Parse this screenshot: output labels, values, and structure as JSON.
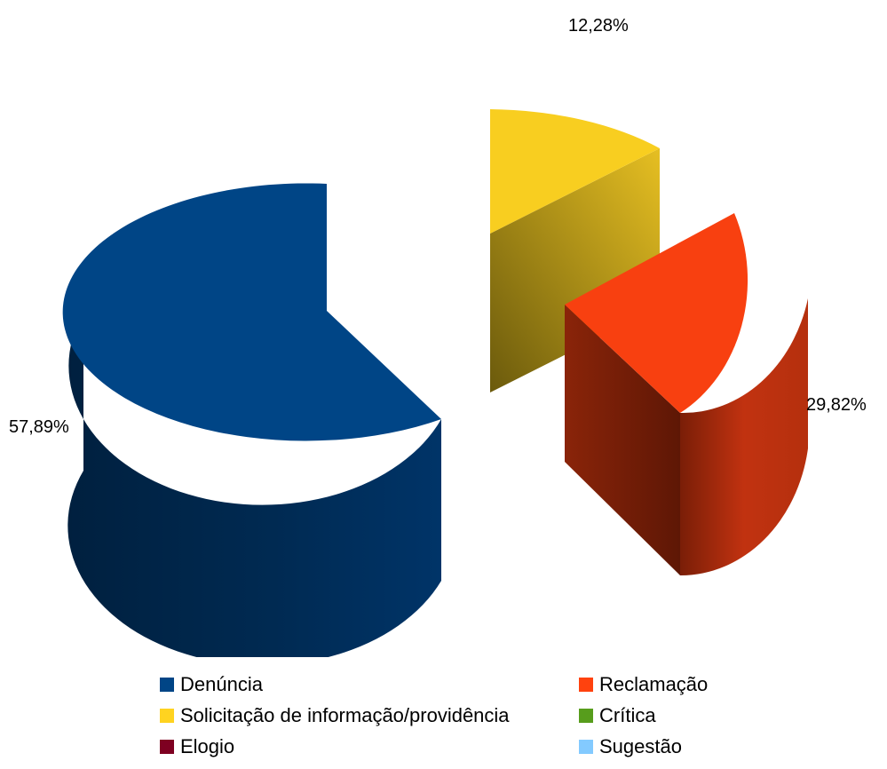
{
  "chart_data": {
    "type": "pie",
    "style": "3d-exploded",
    "slices": [
      {
        "name": "Denúncia",
        "value": 57.89,
        "label": "57,89%",
        "color": "#004586"
      },
      {
        "name": "Reclamação",
        "value": 29.82,
        "label": "29,82%",
        "color": "#ff420e"
      },
      {
        "name": "Solicitação de informação/providência",
        "value": 12.28,
        "label": "12,28%",
        "color": "#ffd320"
      },
      {
        "name": "Crítica",
        "value": 0,
        "label": "",
        "color": "#579d1c"
      },
      {
        "name": "Elogio",
        "value": 0,
        "label": "",
        "color": "#7e0021"
      },
      {
        "name": "Sugestão",
        "value": 0,
        "label": "",
        "color": "#83caff"
      }
    ],
    "legend": {
      "position": "bottom",
      "items": [
        {
          "label": "Denúncia",
          "color": "#004586"
        },
        {
          "label": "Reclamação",
          "color": "#ff420e"
        },
        {
          "label": "Solicitação de informação/providência",
          "color": "#ffd320"
        },
        {
          "label": "Crítica",
          "color": "#579d1c"
        },
        {
          "label": "Elogio",
          "color": "#7e0021"
        },
        {
          "label": "Sugestão",
          "color": "#83caff"
        }
      ]
    }
  }
}
